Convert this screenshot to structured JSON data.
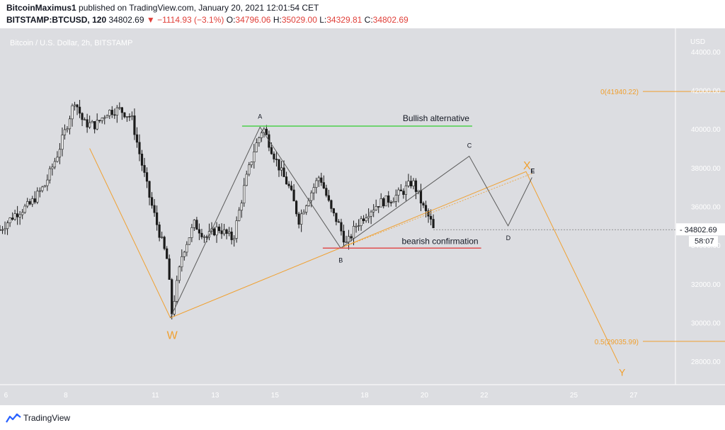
{
  "header": {
    "author": "BitcoinMaximus1",
    "published": "published on TradingView.com, January 20, 2021 12:01:54 CET",
    "symbol": "BITSTAMP:BTCUSD, 120",
    "last": "34802.69",
    "change": "−1114.93 (−3.1%)",
    "o_label": "O:",
    "o": "34796.06",
    "h_label": "H:",
    "h": "35029.00",
    "l_label": "L:",
    "l": "34329.81",
    "c_label": "C:",
    "c": "34802.69"
  },
  "colors": {
    "background": "#dcdde1",
    "candle": "#1b1b1b",
    "orange": "#f0a030",
    "green": "#4cd04c",
    "red": "#e05050",
    "wave": "#5a5a5a"
  },
  "footer": {
    "brand": "TradingView",
    "icon": "tradingview-logo-icon"
  },
  "chart_data": {
    "type": "candlestick",
    "title": "Bitcoin / U.S. Dollar, 2h, BITSTAMP",
    "currency": "USD",
    "ylim": [
      26800,
      45200
    ],
    "xlim": [
      5.8,
      28.4
    ],
    "y_ticks": [
      28000,
      30000,
      32000,
      34000,
      36000,
      38000,
      40000,
      42000,
      44000
    ],
    "y_tick_labels": [
      "28000.00",
      "30000.00",
      "32000.00",
      "34000.00",
      "36000.00",
      "38000.00",
      "40000.00",
      "42000.00",
      "44000.00"
    ],
    "x_ticks": [
      6,
      8,
      11,
      13,
      15,
      18,
      20,
      22,
      25,
      27
    ],
    "x_tick_labels": [
      "6",
      "8",
      "11",
      "13",
      "15",
      "18",
      "20",
      "22",
      "25",
      "27"
    ],
    "price_path": [
      [
        5.8,
        34800
      ],
      [
        6.3,
        35600
      ],
      [
        6.8,
        36100
      ],
      [
        7.3,
        37100
      ],
      [
        7.7,
        38600
      ],
      [
        8.0,
        40000
      ],
      [
        8.3,
        41500
      ],
      [
        8.6,
        40300
      ],
      [
        9.0,
        40200
      ],
      [
        9.4,
        40900
      ],
      [
        9.8,
        41000
      ],
      [
        10.2,
        40600
      ],
      [
        10.5,
        38500
      ],
      [
        10.8,
        36500
      ],
      [
        11.1,
        34800
      ],
      [
        11.4,
        33200
      ],
      [
        11.55,
        30500
      ],
      [
        11.9,
        33600
      ],
      [
        12.3,
        35100
      ],
      [
        12.7,
        34400
      ],
      [
        13.1,
        34900
      ],
      [
        13.6,
        34300
      ],
      [
        14.0,
        37200
      ],
      [
        14.3,
        38900
      ],
      [
        14.6,
        40100
      ],
      [
        14.9,
        38900
      ],
      [
        15.2,
        37800
      ],
      [
        15.5,
        36900
      ],
      [
        15.8,
        35300
      ],
      [
        16.1,
        36400
      ],
      [
        16.5,
        37600
      ],
      [
        16.9,
        35700
      ],
      [
        17.1,
        35200
      ],
      [
        17.4,
        34000
      ],
      [
        17.7,
        35000
      ],
      [
        18.1,
        35700
      ],
      [
        18.5,
        36200
      ],
      [
        18.9,
        36400
      ],
      [
        19.3,
        36800
      ],
      [
        19.6,
        37300
      ],
      [
        19.8,
        36600
      ],
      [
        20.0,
        35800
      ],
      [
        20.2,
        35300
      ],
      [
        20.3,
        34803
      ]
    ],
    "last_price": "34802.69",
    "countdown": "58:07",
    "fib_levels": [
      {
        "label": "0(41940.22)",
        "value": 41940.22
      },
      {
        "label": "0.5(29035.99)",
        "value": 29035.99
      }
    ],
    "horizontal_lines": [
      {
        "label": "Bullish alternative",
        "value": 40150,
        "x_range": [
          13.9,
          21.6
        ]
      },
      {
        "label": "bearish confirmation",
        "value": 33850,
        "x_range": [
          16.6,
          21.9
        ]
      }
    ],
    "wave_points": [
      {
        "label": "W",
        "x": 11.5,
        "y": 30250
      },
      {
        "label": "A",
        "x": 14.5,
        "y": 40100
      },
      {
        "label": "B",
        "x": 17.2,
        "y": 33850
      },
      {
        "label": "C",
        "x": 21.5,
        "y": 38600
      },
      {
        "label": "D",
        "x": 22.8,
        "y": 35000
      },
      {
        "label": "E",
        "x": 23.6,
        "y": 37500
      },
      {
        "label": "X",
        "x": 23.4,
        "y": 37700
      },
      {
        "label": "Y",
        "x": 26.6,
        "y": 27400
      }
    ],
    "annotations": [
      "Bullish alternative",
      "bearish confirmation",
      "W",
      "A",
      "B",
      "C",
      "D",
      "E",
      "X",
      "Y"
    ]
  }
}
